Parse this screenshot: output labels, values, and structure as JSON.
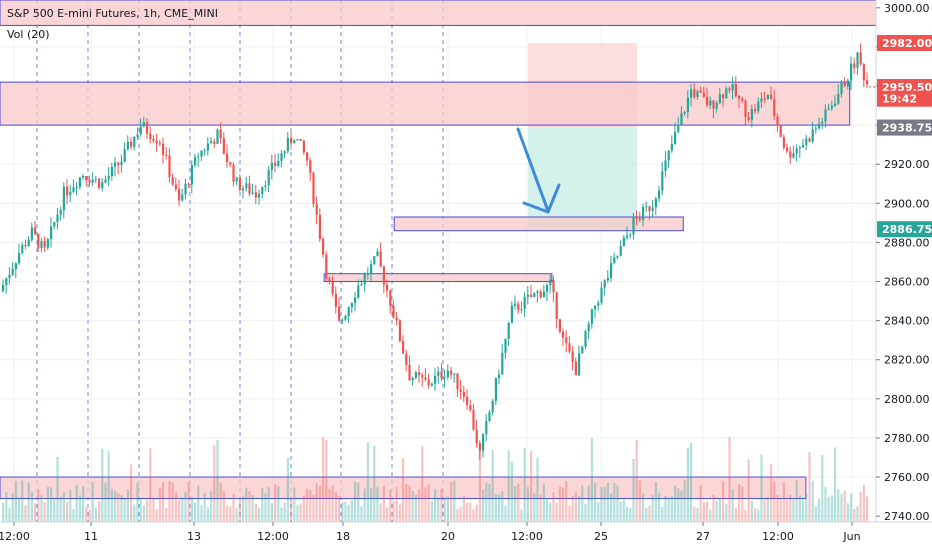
{
  "header": {
    "title": "S&P 500 E-mini Futures, 1h, CME_MINI",
    "volume_label": "Vol (20)"
  },
  "colors": {
    "up": "#26a69a",
    "down": "#ef5350",
    "zone_fill": "#f8c8c8",
    "zone_border": "#4a4ad6",
    "stop_fill": "#fcd8d8",
    "target_fill": "#cdeee8",
    "arrow": "#3d8bd9",
    "grid": "#eef0f3",
    "session": "#4a6fd6"
  },
  "price_axis": {
    "ticks": [
      "3000.00",
      "2980.00",
      "2960.00",
      "2940.00",
      "2920.00",
      "2900.00",
      "2880.00",
      "2860.00",
      "2840.00",
      "2820.00",
      "2800.00",
      "2780.00",
      "2760.00",
      "2740.00"
    ],
    "tags": [
      {
        "text": "2982.00",
        "value": 2982,
        "bg": "#ef5350",
        "fg": "#ffffff"
      },
      {
        "text": "2959.50",
        "value": 2959.5,
        "bg": "#ef5350",
        "fg": "#ffffff"
      },
      {
        "text": "19:42",
        "value": 2953.5,
        "bg": "#ef5350",
        "fg": "#ffffff"
      },
      {
        "text": "2938.75",
        "value": 2938.75,
        "bg": "#787b86",
        "fg": "#ffffff"
      },
      {
        "text": "2886.75",
        "value": 2886.75,
        "bg": "#26a69a",
        "fg": "#ffffff"
      }
    ]
  },
  "time_axis": {
    "labels": [
      "12:00",
      "11",
      "13",
      "12:00",
      "18",
      "20",
      "12:00",
      "25",
      "27",
      "12:00",
      "Jun"
    ]
  },
  "chart_data": {
    "type": "candlestick",
    "title": "S&P 500 E-mini Futures, 1h, CME_MINI",
    "indicator": "Vol (20)",
    "ylim": [
      2737,
      3004
    ],
    "grid": true,
    "last_price": 2959.5,
    "countdown": "19:42",
    "price_path": [
      {
        "t": 0,
        "p": 2855
      },
      {
        "t": 6,
        "p": 2875
      },
      {
        "t": 10,
        "p": 2885
      },
      {
        "t": 14,
        "p": 2875
      },
      {
        "t": 20,
        "p": 2905
      },
      {
        "t": 26,
        "p": 2915
      },
      {
        "t": 32,
        "p": 2910
      },
      {
        "t": 38,
        "p": 2922
      },
      {
        "t": 44,
        "p": 2940
      },
      {
        "t": 50,
        "p": 2932
      },
      {
        "t": 56,
        "p": 2900
      },
      {
        "t": 62,
        "p": 2925
      },
      {
        "t": 68,
        "p": 2935
      },
      {
        "t": 74,
        "p": 2910
      },
      {
        "t": 80,
        "p": 2905
      },
      {
        "t": 86,
        "p": 2920
      },
      {
        "t": 92,
        "p": 2935
      },
      {
        "t": 96,
        "p": 2922
      },
      {
        "t": 102,
        "p": 2865
      },
      {
        "t": 106,
        "p": 2838
      },
      {
        "t": 112,
        "p": 2858
      },
      {
        "t": 118,
        "p": 2872
      },
      {
        "t": 122,
        "p": 2850
      },
      {
        "t": 128,
        "p": 2812
      },
      {
        "t": 134,
        "p": 2808
      },
      {
        "t": 140,
        "p": 2815
      },
      {
        "t": 146,
        "p": 2800
      },
      {
        "t": 150,
        "p": 2772
      },
      {
        "t": 154,
        "p": 2800
      },
      {
        "t": 160,
        "p": 2845
      },
      {
        "t": 166,
        "p": 2852
      },
      {
        "t": 172,
        "p": 2858
      },
      {
        "t": 176,
        "p": 2830
      },
      {
        "t": 180,
        "p": 2815
      },
      {
        "t": 186,
        "p": 2848
      },
      {
        "t": 192,
        "p": 2870
      },
      {
        "t": 198,
        "p": 2890
      },
      {
        "t": 204,
        "p": 2900
      },
      {
        "t": 210,
        "p": 2930
      },
      {
        "t": 216,
        "p": 2958
      },
      {
        "t": 222,
        "p": 2950
      },
      {
        "t": 228,
        "p": 2960
      },
      {
        "t": 234,
        "p": 2945
      },
      {
        "t": 240,
        "p": 2956
      },
      {
        "t": 246,
        "p": 2925
      },
      {
        "t": 252,
        "p": 2932
      },
      {
        "t": 258,
        "p": 2945
      },
      {
        "t": 264,
        "p": 2962
      },
      {
        "t": 268,
        "p": 2975
      },
      {
        "t": 271,
        "p": 2961
      }
    ],
    "zones": [
      {
        "top": 3004,
        "bottom": 2991,
        "from": 0,
        "to": 1,
        "name": "top-zone"
      },
      {
        "top": 2962,
        "bottom": 2940,
        "from": 0,
        "to": 0.97,
        "name": "resistance-zone"
      },
      {
        "top": 2893,
        "bottom": 2886,
        "from": 0.45,
        "to": 0.78,
        "name": "support-zone-1"
      },
      {
        "top": 2864,
        "bottom": 2860,
        "from": 0.37,
        "to": 0.63,
        "name": "support-zone-2"
      },
      {
        "top": 2760,
        "bottom": 2749,
        "from": 0,
        "to": 0.92,
        "name": "bottom-zone"
      }
    ],
    "short_position": {
      "entry": 2938.75,
      "stop": 2982.0,
      "target": 2886.75
    }
  }
}
